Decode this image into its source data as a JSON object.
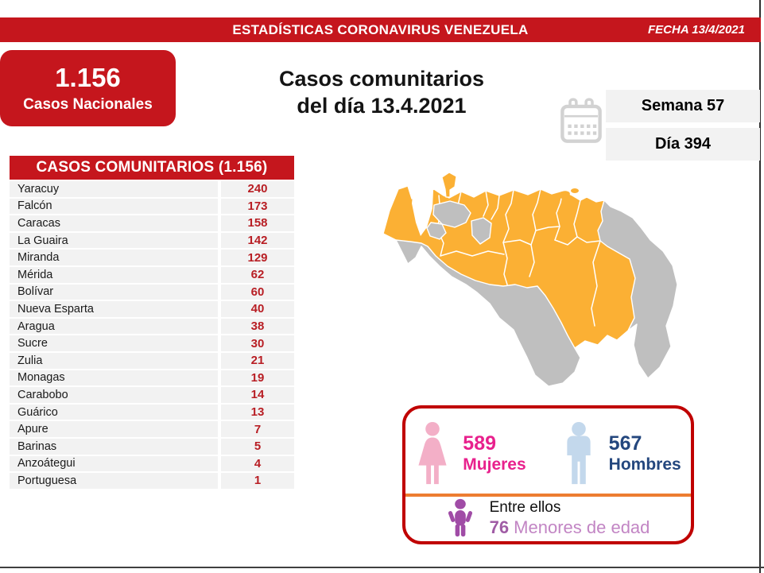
{
  "header": {
    "title": "ESTADÍSTICAS CORONAVIRUS VENEZUELA",
    "date_label": "FECHA 13/4/2021"
  },
  "national_box": {
    "value": "1.156",
    "label": "Casos Nacionales"
  },
  "main_title": {
    "line1": "Casos comunitarios",
    "line2": "del día 13.4.2021"
  },
  "week_day": {
    "week": "Semana 57",
    "day": "Día 394",
    "icon": "calendar-icon"
  },
  "table": {
    "header": "CASOS COMUNITARIOS (1.156)",
    "rows": [
      {
        "state": "Yaracuy",
        "value": "240"
      },
      {
        "state": "Falcón",
        "value": "173"
      },
      {
        "state": "Caracas",
        "value": "158"
      },
      {
        "state": "La Guaira",
        "value": "142"
      },
      {
        "state": "Miranda",
        "value": "129"
      },
      {
        "state": "Mérida",
        "value": "62"
      },
      {
        "state": "Bolívar",
        "value": "60"
      },
      {
        "state": "Nueva Esparta",
        "value": "40"
      },
      {
        "state": "Aragua",
        "value": "38"
      },
      {
        "state": "Sucre",
        "value": "30"
      },
      {
        "state": "Zulia",
        "value": "21"
      },
      {
        "state": "Monagas",
        "value": "19"
      },
      {
        "state": "Carabobo",
        "value": "14"
      },
      {
        "state": "Guárico",
        "value": "13"
      },
      {
        "state": "Apure",
        "value": "7"
      },
      {
        "state": "Barinas",
        "value": "5"
      },
      {
        "state": "Anzoátegui",
        "value": "4"
      },
      {
        "state": "Portuguesa",
        "value": "1"
      }
    ]
  },
  "map": {
    "name": "venezuela-states-map",
    "highlight_color": "#FBB034",
    "inactive_color": "#BFBFBF"
  },
  "gender_box": {
    "women": {
      "value": "589",
      "label": "Mujeres",
      "color": "#E8218D",
      "icon_color": "#F3AFC7"
    },
    "men": {
      "value": "567",
      "label": "Hombres",
      "color": "#24477E",
      "icon_color": "#C3D8EC"
    },
    "minors": {
      "line1": "Entre ellos",
      "value": "76",
      "label": " Menores de edad",
      "color": "#A05CA5",
      "icon_color": "#A04CA6"
    }
  },
  "chart_data": {
    "type": "table",
    "title": "CASOS COMUNITARIOS (1.156)",
    "categories": [
      "Yaracuy",
      "Falcón",
      "Caracas",
      "La Guaira",
      "Miranda",
      "Mérida",
      "Bolívar",
      "Nueva Esparta",
      "Aragua",
      "Sucre",
      "Zulia",
      "Monagas",
      "Carabobo",
      "Guárico",
      "Apure",
      "Barinas",
      "Anzoátegui",
      "Portuguesa"
    ],
    "values": [
      240,
      173,
      158,
      142,
      129,
      62,
      60,
      40,
      38,
      30,
      21,
      19,
      14,
      13,
      7,
      5,
      4,
      1
    ],
    "totals": {
      "casos_nacionales": 1156,
      "casos_comunitarios": 1156,
      "mujeres": 589,
      "hombres": 567,
      "menores_de_edad": 76,
      "semana": 57,
      "dia": 394
    },
    "date": "13/4/2021"
  },
  "colors": {
    "brand_red": "#C5161D",
    "value_red": "#B81E24",
    "row_gray": "#F2F2F2",
    "divider_orange": "#ED7D31",
    "border_dark_red": "#C00000"
  }
}
